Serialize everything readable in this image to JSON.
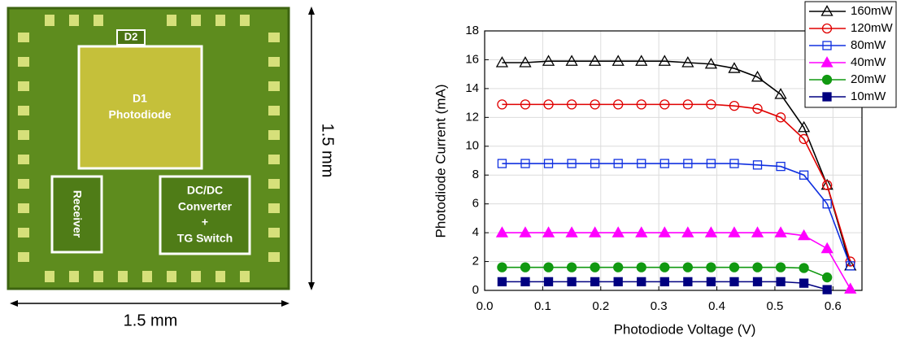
{
  "chip": {
    "d2": "D2",
    "d1": [
      "D1",
      "Photodiode"
    ],
    "receiver": "Receiver",
    "converter": [
      "DC/DC",
      "Converter",
      "+",
      "TG Switch"
    ],
    "width_label": "1.5 mm",
    "height_label": "1.5 mm"
  },
  "chart_data": {
    "type": "line",
    "xlabel": "Photodiode Voltage (V)",
    "ylabel": "Photodiode Current (mA)",
    "x": [
      0.03,
      0.07,
      0.11,
      0.15,
      0.19,
      0.23,
      0.27,
      0.31,
      0.35,
      0.39,
      0.43,
      0.47,
      0.51,
      0.55,
      0.59,
      0.63
    ],
    "series": [
      {
        "name": "160mW",
        "color": "#000000",
        "marker": "triangle",
        "filled": false,
        "values": [
          15.8,
          15.8,
          15.9,
          15.9,
          15.9,
          15.9,
          15.9,
          15.9,
          15.8,
          15.7,
          15.4,
          14.8,
          13.6,
          11.3,
          7.3,
          1.7
        ]
      },
      {
        "name": "120mW",
        "color": "#e00000",
        "marker": "circle",
        "filled": false,
        "values": [
          12.9,
          12.9,
          12.9,
          12.9,
          12.9,
          12.9,
          12.9,
          12.9,
          12.9,
          12.9,
          12.8,
          12.6,
          12.0,
          10.5,
          7.3,
          2.0
        ]
      },
      {
        "name": "80mW",
        "color": "#1030e0",
        "marker": "square",
        "filled": false,
        "values": [
          8.8,
          8.8,
          8.8,
          8.8,
          8.8,
          8.8,
          8.8,
          8.8,
          8.8,
          8.8,
          8.8,
          8.7,
          8.6,
          8.0,
          6.0,
          1.7
        ]
      },
      {
        "name": "40mW",
        "color": "#ff00ff",
        "marker": "triangle",
        "filled": true,
        "values": [
          4.0,
          4.0,
          4.0,
          4.0,
          4.0,
          4.0,
          4.0,
          4.0,
          4.0,
          4.0,
          4.0,
          4.0,
          4.0,
          3.8,
          2.9,
          0.1
        ]
      },
      {
        "name": "20mW",
        "color": "#119911",
        "marker": "circle",
        "filled": true,
        "values": [
          1.6,
          1.6,
          1.6,
          1.6,
          1.6,
          1.6,
          1.6,
          1.6,
          1.6,
          1.6,
          1.6,
          1.6,
          1.6,
          1.55,
          0.9,
          null
        ]
      },
      {
        "name": "10mW",
        "color": "#000080",
        "marker": "square",
        "filled": true,
        "values": [
          0.6,
          0.6,
          0.6,
          0.6,
          0.6,
          0.6,
          0.6,
          0.6,
          0.6,
          0.6,
          0.6,
          0.6,
          0.6,
          0.5,
          0.05,
          null
        ]
      }
    ],
    "xlim": [
      0,
      0.65
    ],
    "xticks": [
      {
        "value": 0,
        "label": "0.0"
      },
      0.1,
      0.2,
      0.3,
      0.4,
      0.5,
      0.6
    ],
    "ylim": [
      0,
      18
    ],
    "yticks": [
      0,
      2,
      4,
      6,
      8,
      10,
      12,
      14,
      16,
      18
    ],
    "grid": true,
    "legend": "top-right"
  }
}
